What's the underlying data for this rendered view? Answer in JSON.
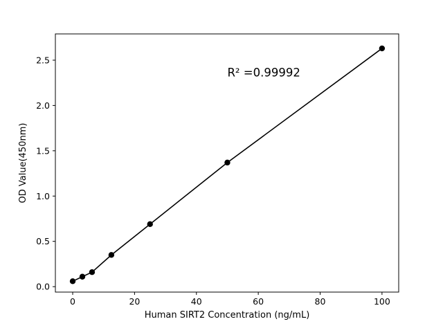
{
  "chart_data": {
    "type": "scatter",
    "title": "",
    "xlabel": "Human SIRT2 Concentration (ng/mL)",
    "ylabel": "OD Value(450nm)",
    "x": [
      0,
      3.125,
      6.25,
      12.5,
      25,
      50,
      100
    ],
    "y": [
      0.06,
      0.11,
      0.16,
      0.35,
      0.69,
      1.37,
      2.63
    ],
    "xlim": [
      -5.6,
      105.4
    ],
    "ylim": [
      -0.06,
      2.79
    ],
    "xticks": [
      0,
      20,
      40,
      60,
      80,
      100
    ],
    "yticks": [
      0.0,
      0.5,
      1.0,
      1.5,
      2.0,
      2.5
    ],
    "ytick_labels": [
      "0.0",
      "0.5",
      "1.0",
      "1.5",
      "2.0",
      "2.5"
    ],
    "line": true,
    "grid": false,
    "legend": "none",
    "marker_color": "#000000",
    "line_color": "#000000",
    "annotation": {
      "text": "R² =0.99992",
      "x": 50,
      "y": 2.32
    }
  }
}
